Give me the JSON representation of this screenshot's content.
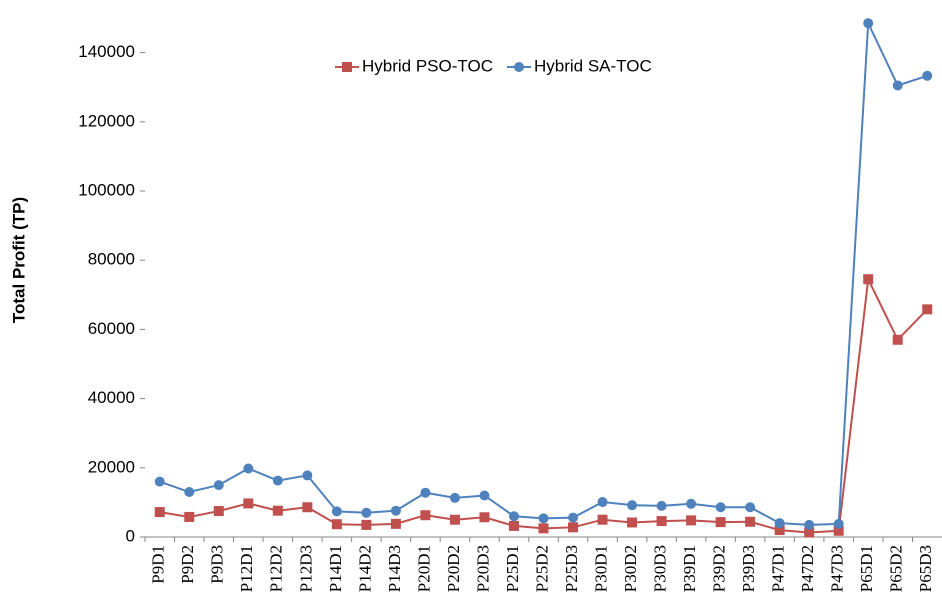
{
  "chart_data": {
    "type": "line",
    "y_label": "Total Profit (TP)",
    "categories": [
      "P9D1",
      "P9D2",
      "P9D3",
      "P12D1",
      "P12D2",
      "P12D3",
      "P14D1",
      "P14D2",
      "P14D3",
      "P20D1",
      "P20D2",
      "P20D3",
      "P25D1",
      "P25D2",
      "P25D3",
      "P30D1",
      "P30D2",
      "P30D3",
      "P39D1",
      "P39D2",
      "P39D3",
      "P47D1",
      "P47D2",
      "P47D3",
      "P65D1",
      "P65D2",
      "P65D3"
    ],
    "series": [
      {
        "name": "Hybrid PSO-TOC",
        "color": "#c0504d",
        "marker": "square",
        "values": [
          7200,
          5800,
          7500,
          9700,
          7600,
          8600,
          3700,
          3500,
          3800,
          6300,
          5000,
          5700,
          3200,
          2500,
          2800,
          5000,
          4200,
          4600,
          4800,
          4300,
          4400,
          2000,
          1300,
          1800,
          74500,
          57000,
          65800
        ]
      },
      {
        "name": "Hybrid SA-TOC",
        "color": "#4f81bd",
        "marker": "circle",
        "values": [
          16000,
          13000,
          15000,
          19800,
          16300,
          17800,
          7400,
          7000,
          7600,
          12800,
          11300,
          12000,
          6000,
          5400,
          5600,
          10100,
          9200,
          9000,
          9600,
          8600,
          8600,
          4000,
          3500,
          3800,
          148500,
          130500,
          133300
        ]
      }
    ],
    "ylim": [
      0,
      150000
    ],
    "yticks": [
      0,
      20000,
      40000,
      60000,
      80000,
      100000,
      120000,
      140000
    ],
    "grid": false,
    "legend": "top"
  }
}
